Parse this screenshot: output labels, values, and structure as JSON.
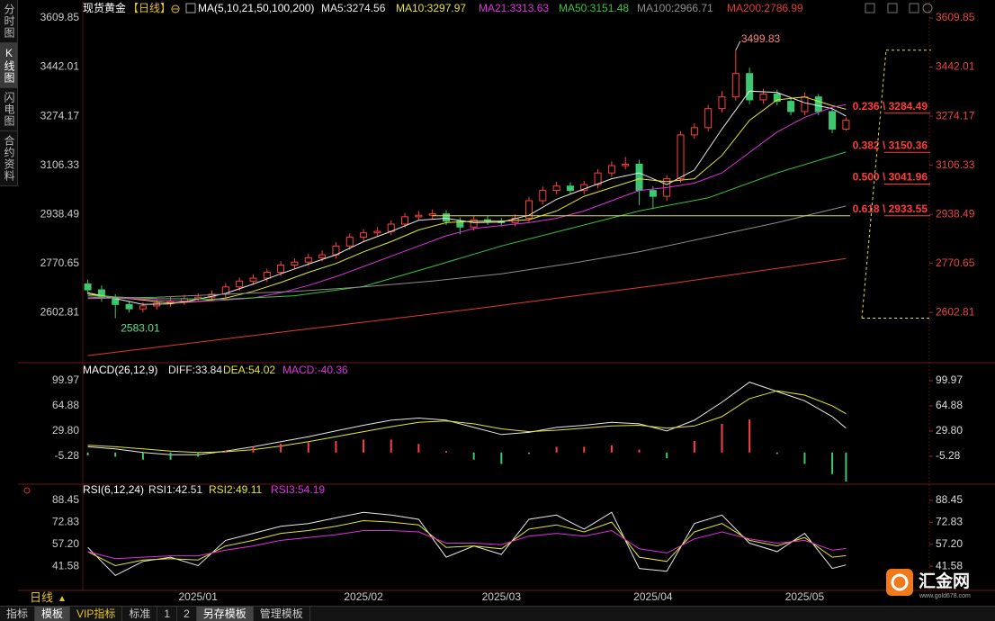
{
  "chart_data": [
    {
      "type": "candlestick",
      "title": "现货黄金",
      "period": "【日线】",
      "indicator": "MA(5,10,21,50,100,200)",
      "categories": [
        null,
        null,
        null,
        null,
        null,
        null,
        null,
        null,
        "2025/01",
        null,
        null,
        null,
        null,
        null,
        null,
        null,
        null,
        null,
        null,
        null,
        "2025/02",
        null,
        null,
        null,
        null,
        null,
        null,
        null,
        null,
        null,
        "2025/03",
        null,
        null,
        null,
        null,
        null,
        null,
        null,
        null,
        null,
        null,
        "2025/04",
        null,
        null,
        null,
        null,
        null,
        null,
        null,
        null,
        null,
        null,
        "2025/05",
        null,
        null,
        null
      ],
      "open": [
        2700,
        2680,
        2655,
        2630,
        2615,
        2625,
        2635,
        2640,
        2650,
        2655,
        2665,
        2690,
        2710,
        2720,
        2740,
        2765,
        2775,
        2790,
        2800,
        2830,
        2860,
        2875,
        2880,
        2905,
        2930,
        2935,
        2940,
        2915,
        2895,
        2920,
        2915,
        2910,
        2925,
        2985,
        3020,
        3035,
        3020,
        3040,
        3080,
        3105,
        3110,
        3020,
        3000,
        3060,
        3210,
        3235,
        3300,
        3340,
        3420,
        3330,
        3350,
        3325,
        3290,
        3340,
        3290,
        3230
      ],
      "high": [
        2715,
        2695,
        2665,
        2640,
        2638,
        2648,
        2655,
        2663,
        2668,
        2678,
        2703,
        2722,
        2733,
        2752,
        2778,
        2788,
        2803,
        2815,
        2843,
        2873,
        2888,
        2895,
        2918,
        2943,
        2950,
        2955,
        2952,
        2928,
        2932,
        2933,
        2926,
        2938,
        2998,
        3033,
        3050,
        3048,
        3053,
        3093,
        3120,
        3135,
        3125,
        3035,
        3073,
        3223,
        3250,
        3313,
        3360,
        3499.83,
        3440,
        3368,
        3365,
        3335,
        3355,
        3350,
        3300,
        3270
      ],
      "low": [
        2665,
        2640,
        2583.01,
        2602,
        2603,
        2612,
        2622,
        2628,
        2638,
        2642,
        2652,
        2677,
        2697,
        2707,
        2727,
        2752,
        2762,
        2777,
        2787,
        2817,
        2847,
        2862,
        2867,
        2892,
        2917,
        2922,
        2902,
        2870,
        2882,
        2902,
        2897,
        2897,
        2912,
        2972,
        3007,
        3007,
        3007,
        3027,
        3067,
        3092,
        2970,
        2956,
        2985,
        3047,
        3197,
        3222,
        3287,
        3327,
        3315,
        3317,
        3312,
        3277,
        3277,
        3277,
        3216,
        3225
      ],
      "close": [
        2680,
        2655,
        2630,
        2615,
        2625,
        2635,
        2640,
        2650,
        2655,
        2665,
        2690,
        2710,
        2720,
        2740,
        2765,
        2775,
        2790,
        2800,
        2830,
        2860,
        2875,
        2880,
        2905,
        2930,
        2935,
        2940,
        2915,
        2895,
        2920,
        2915,
        2910,
        2925,
        2985,
        3020,
        3035,
        3020,
        3040,
        3080,
        3105,
        3110,
        3020,
        3000,
        3060,
        3210,
        3235,
        3300,
        3340,
        3420,
        3330,
        3350,
        3325,
        3290,
        3340,
        3290,
        3230,
        3260
      ],
      "up_color": "#ff4040",
      "down_color": "#3cc870",
      "xlim": [
        -0.3,
        55.3
      ],
      "ylim": [
        2440,
        3647
      ],
      "yticks": [
        3609.85,
        3442.01,
        3274.17,
        3106.33,
        2938.49,
        2770.65,
        2602.81
      ],
      "series": [
        {
          "name": "MA5:3274.56",
          "color": "#e8e8e8",
          "x": [
            0,
            2,
            4,
            6,
            8,
            10,
            12,
            14,
            16,
            18,
            20,
            22,
            24,
            26,
            28,
            30,
            32,
            34,
            36,
            38,
            40,
            42,
            44,
            46,
            48,
            50,
            52,
            54,
            55
          ],
          "values": [
            2670,
            2650,
            2630,
            2632,
            2648,
            2668,
            2700,
            2735,
            2768,
            2800,
            2845,
            2880,
            2918,
            2925,
            2910,
            2912,
            2935,
            2990,
            3025,
            3060,
            3080,
            3040,
            3090,
            3230,
            3360,
            3355,
            3320,
            3300,
            3274.56
          ]
        },
        {
          "name": "MA10:3297.97",
          "color": "#e6e62a",
          "x": [
            0,
            2,
            4,
            6,
            8,
            10,
            12,
            14,
            16,
            18,
            20,
            22,
            24,
            26,
            28,
            30,
            32,
            34,
            36,
            38,
            40,
            42,
            44,
            46,
            48,
            50,
            52,
            54,
            55
          ],
          "values": [
            2665,
            2655,
            2645,
            2635,
            2640,
            2652,
            2675,
            2705,
            2740,
            2770,
            2810,
            2845,
            2885,
            2910,
            2915,
            2915,
            2920,
            2950,
            3000,
            3030,
            3060,
            3050,
            3060,
            3140,
            3260,
            3330,
            3340,
            3310,
            3297.97
          ]
        },
        {
          "name": "MA21:3313.63",
          "color": "#e030e0",
          "x": [
            0,
            2,
            4,
            6,
            8,
            10,
            12,
            14,
            16,
            18,
            20,
            22,
            24,
            26,
            28,
            30,
            32,
            34,
            36,
            38,
            40,
            42,
            44,
            46,
            48,
            50,
            52,
            54,
            55
          ],
          "values": [
            2655,
            2652,
            2648,
            2643,
            2640,
            2645,
            2652,
            2670,
            2695,
            2725,
            2760,
            2795,
            2830,
            2865,
            2890,
            2900,
            2910,
            2925,
            2950,
            2985,
            3020,
            3030,
            3045,
            3080,
            3150,
            3220,
            3270,
            3305,
            3313.63
          ]
        },
        {
          "name": "MA50:3151.48",
          "color": "#39c639",
          "x": [
            0,
            5,
            10,
            15,
            20,
            25,
            30,
            35,
            40,
            45,
            50,
            55
          ],
          "values": [
            2660,
            2650,
            2648,
            2660,
            2692,
            2760,
            2830,
            2890,
            2950,
            2995,
            3080,
            3151.48
          ]
        },
        {
          "name": "MA100:2966.71",
          "color": "#8c8c8c",
          "x": [
            0,
            5,
            10,
            15,
            20,
            25,
            30,
            35,
            40,
            45,
            50,
            55
          ],
          "values": [
            2650,
            2655,
            2665,
            2675,
            2690,
            2710,
            2735,
            2770,
            2810,
            2860,
            2910,
            2966.71
          ]
        },
        {
          "name": "MA200:2786.99",
          "color": "#e53a2e",
          "x": [
            0,
            14,
            28,
            42,
            55
          ],
          "values": [
            2455,
            2535,
            2615,
            2700,
            2786.99
          ]
        }
      ],
      "fibonacci": [
        {
          "label": "0.236 \\ 3284.49",
          "value": 3284.49
        },
        {
          "label": "0.382 \\ 3150.36",
          "value": 3150.36
        },
        {
          "label": "0.500 \\ 3041.96",
          "value": 3041.96
        },
        {
          "label": "0.618 \\ 2933.55",
          "value": 2933.55
        }
      ]
    },
    {
      "type": "macd",
      "title": "MACD(26,12,9)",
      "ylim": [
        -40.4,
        113.8
      ],
      "yticks": [
        99.97,
        64.88,
        {
          "value": 29.8,
          "label": "29.80"
        },
        -5.28
      ],
      "series": [
        {
          "name": "DIFF:33.84",
          "color": "#e8e8e8",
          "x": [
            0,
            2,
            4,
            6,
            8,
            10,
            12,
            14,
            16,
            18,
            20,
            22,
            24,
            26,
            28,
            30,
            32,
            34,
            36,
            38,
            40,
            42,
            44,
            46,
            48,
            50,
            52,
            54,
            55
          ],
          "values": [
            8,
            5,
            0,
            -3,
            -3,
            2,
            8,
            15,
            22,
            30,
            38,
            45,
            48,
            45,
            35,
            25,
            28,
            35,
            38,
            42,
            40,
            30,
            45,
            70,
            98,
            85,
            72,
            50,
            33.84
          ]
        },
        {
          "name": "DEA:54.02",
          "color": "#e6e62a",
          "x": [
            0,
            2,
            4,
            6,
            8,
            10,
            12,
            14,
            16,
            18,
            20,
            22,
            24,
            26,
            28,
            30,
            32,
            34,
            36,
            38,
            40,
            42,
            44,
            46,
            48,
            50,
            52,
            54,
            55
          ],
          "values": [
            10,
            8,
            5,
            2,
            0,
            1,
            4,
            9,
            15,
            22,
            29,
            36,
            42,
            44,
            40,
            33,
            29,
            31,
            34,
            37,
            38,
            34,
            37,
            50,
            75,
            86,
            80,
            65,
            54.02
          ]
        },
        {
          "name": "MACD:-40.36",
          "style": "histogram",
          "label_color": "#e030e0",
          "color": "#ff4040",
          "negative_color": "#3cc870",
          "x": [
            0,
            2,
            4,
            6,
            8,
            10,
            12,
            14,
            16,
            18,
            20,
            22,
            24,
            26,
            28,
            30,
            32,
            34,
            36,
            38,
            40,
            42,
            44,
            46,
            48,
            50,
            52,
            54,
            55
          ],
          "values": [
            -4,
            -6,
            -10,
            -10,
            -6,
            2,
            8,
            12,
            14,
            16,
            18,
            18,
            12,
            2,
            -10,
            -16,
            -2,
            8,
            8,
            10,
            4,
            -8,
            16,
            40,
            46,
            -2,
            -16,
            -30,
            -40.36
          ]
        }
      ]
    },
    {
      "type": "rsi",
      "title": "RSI(6,12,24)",
      "ylim": [
        25,
        95.5
      ],
      "yticks": [
        88.45,
        72.83,
        {
          "value": 57.2,
          "label": "57.20"
        },
        41.58
      ],
      "series": [
        {
          "name": "RSI1:42.51",
          "color": "#e8e8e8",
          "x": [
            0,
            2,
            4,
            6,
            8,
            10,
            12,
            14,
            16,
            18,
            20,
            22,
            24,
            26,
            28,
            30,
            32,
            34,
            36,
            38,
            40,
            42,
            44,
            46,
            48,
            50,
            52,
            54,
            55
          ],
          "values": [
            55,
            35,
            45,
            48,
            42,
            60,
            65,
            70,
            72,
            76,
            80,
            78,
            75,
            48,
            56,
            50,
            75,
            78,
            68,
            80,
            40,
            38,
            72,
            78,
            58,
            52,
            65,
            40,
            42.51
          ]
        },
        {
          "name": "RSI2:49.11",
          "color": "#e6e62a",
          "x": [
            0,
            2,
            4,
            6,
            8,
            10,
            12,
            14,
            16,
            18,
            20,
            22,
            24,
            26,
            28,
            30,
            32,
            34,
            36,
            38,
            40,
            42,
            44,
            46,
            48,
            50,
            52,
            54,
            55
          ],
          "values": [
            52,
            42,
            46,
            47,
            46,
            56,
            60,
            65,
            67,
            70,
            74,
            73,
            71,
            55,
            56,
            54,
            68,
            71,
            66,
            73,
            48,
            45,
            66,
            72,
            60,
            56,
            62,
            48,
            49.11
          ]
        },
        {
          "name": "RSI3:54.19",
          "color": "#e030e0",
          "x": [
            0,
            2,
            4,
            6,
            8,
            10,
            12,
            14,
            16,
            18,
            20,
            22,
            24,
            26,
            28,
            30,
            32,
            34,
            36,
            38,
            40,
            42,
            44,
            46,
            48,
            50,
            52,
            54,
            55
          ],
          "values": [
            52,
            47,
            48,
            49,
            49,
            53,
            56,
            60,
            62,
            64,
            67,
            67,
            66,
            58,
            58,
            57,
            63,
            65,
            63,
            67,
            54,
            51,
            61,
            66,
            61,
            58,
            60,
            53,
            54.19
          ]
        }
      ]
    }
  ],
  "ui": {
    "sidebar": [
      "分时图",
      "K线图",
      "闪电图",
      "合约资料"
    ],
    "period": "日线",
    "toolbar": [
      "指标",
      "模板",
      "VIP指标",
      "标准",
      "1",
      "2",
      "另存模板",
      "管理模板"
    ],
    "logo": {
      "name": "汇金网",
      "url": "www.gold678.com"
    }
  }
}
